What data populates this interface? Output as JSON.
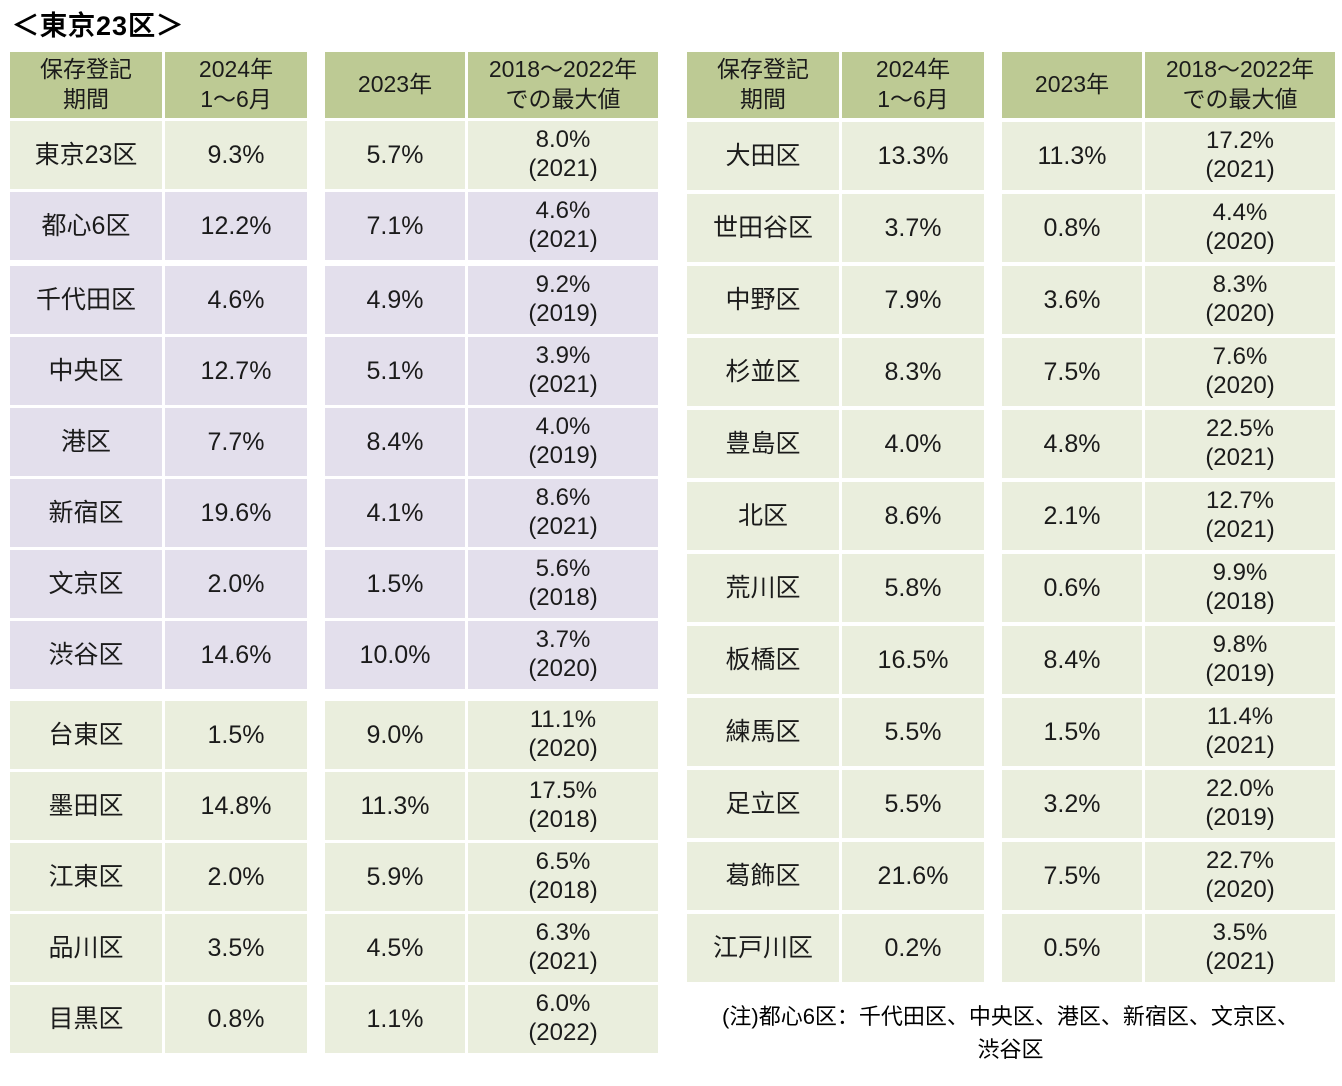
{
  "title": "＜東京23区＞",
  "footnote": {
    "line1": "(注)都心6区：千代田区、中央区、港区、新宿区、文京区、",
    "line2": "渋谷区"
  },
  "colors": {
    "header_bg": "#bdca94",
    "row_green_bg": "#eaeedd",
    "row_purple_bg": "#e3dfec",
    "text": "#1b1b1b",
    "background": "#ffffff"
  },
  "chart_data": [
    {
      "type": "table",
      "position": "left",
      "columns": [
        "保存登記\n期間",
        "2024年\n1～6月",
        "2023年",
        "2018～2022年\nでの最大値"
      ],
      "rows": [
        {
          "ward": "東京23区",
          "v2024": "9.3%",
          "v2023": "5.7%",
          "max_value": "8.0%",
          "max_year": "(2021)",
          "tone": "green",
          "gap_before": 0
        },
        {
          "ward": "都心6区",
          "v2024": "12.2%",
          "v2023": "7.1%",
          "max_value": "4.6%",
          "max_year": "(2021)",
          "tone": "purple",
          "gap_before": 0
        },
        {
          "ward": "千代田区",
          "v2024": "4.6%",
          "v2023": "4.9%",
          "max_value": "9.2%",
          "max_year": "(2019)",
          "tone": "purple",
          "gap_before": 6
        },
        {
          "ward": "中央区",
          "v2024": "12.7%",
          "v2023": "5.1%",
          "max_value": "3.9%",
          "max_year": "(2021)",
          "tone": "purple",
          "gap_before": 0
        },
        {
          "ward": "港区",
          "v2024": "7.7%",
          "v2023": "8.4%",
          "max_value": "4.0%",
          "max_year": "(2019)",
          "tone": "purple",
          "gap_before": 0
        },
        {
          "ward": "新宿区",
          "v2024": "19.6%",
          "v2023": "4.1%",
          "max_value": "8.6%",
          "max_year": "(2021)",
          "tone": "purple",
          "gap_before": 0
        },
        {
          "ward": "文京区",
          "v2024": "2.0%",
          "v2023": "1.5%",
          "max_value": "5.6%",
          "max_year": "(2018)",
          "tone": "purple",
          "gap_before": 0
        },
        {
          "ward": "渋谷区",
          "v2024": "14.6%",
          "v2023": "10.0%",
          "max_value": "3.7%",
          "max_year": "(2020)",
          "tone": "purple",
          "gap_before": 0
        },
        {
          "ward": "台東区",
          "v2024": "1.5%",
          "v2023": "9.0%",
          "max_value": "11.1%",
          "max_year": "(2020)",
          "tone": "green",
          "gap_before": 12
        },
        {
          "ward": "墨田区",
          "v2024": "14.8%",
          "v2023": "11.3%",
          "max_value": "17.5%",
          "max_year": "(2018)",
          "tone": "green",
          "gap_before": 0
        },
        {
          "ward": "江東区",
          "v2024": "2.0%",
          "v2023": "5.9%",
          "max_value": "6.5%",
          "max_year": "(2018)",
          "tone": "green",
          "gap_before": 0
        },
        {
          "ward": "品川区",
          "v2024": "3.5%",
          "v2023": "4.5%",
          "max_value": "6.3%",
          "max_year": "(2021)",
          "tone": "green",
          "gap_before": 0
        },
        {
          "ward": "目黒区",
          "v2024": "0.8%",
          "v2023": "1.1%",
          "max_value": "6.0%",
          "max_year": "(2022)",
          "tone": "green",
          "gap_before": 0
        }
      ]
    },
    {
      "type": "table",
      "position": "right",
      "columns": [
        "保存登記\n期間",
        "2024年\n1～6月",
        "2023年",
        "2018～2022年\nでの最大値"
      ],
      "rows": [
        {
          "ward": "大田区",
          "v2024": "13.3%",
          "v2023": "11.3%",
          "max_value": "17.2%",
          "max_year": "(2021)",
          "tone": "green",
          "gap_before": 0
        },
        {
          "ward": "世田谷区",
          "v2024": "3.7%",
          "v2023": "0.8%",
          "max_value": "4.4%",
          "max_year": "(2020)",
          "tone": "green",
          "gap_before": 0
        },
        {
          "ward": "中野区",
          "v2024": "7.9%",
          "v2023": "3.6%",
          "max_value": "8.3%",
          "max_year": "(2020)",
          "tone": "green",
          "gap_before": 0
        },
        {
          "ward": "杉並区",
          "v2024": "8.3%",
          "v2023": "7.5%",
          "max_value": "7.6%",
          "max_year": "(2020)",
          "tone": "green",
          "gap_before": 0
        },
        {
          "ward": "豊島区",
          "v2024": "4.0%",
          "v2023": "4.8%",
          "max_value": "22.5%",
          "max_year": "(2021)",
          "tone": "green",
          "gap_before": 0
        },
        {
          "ward": "北区",
          "v2024": "8.6%",
          "v2023": "2.1%",
          "max_value": "12.7%",
          "max_year": "(2021)",
          "tone": "green",
          "gap_before": 0
        },
        {
          "ward": "荒川区",
          "v2024": "5.8%",
          "v2023": "0.6%",
          "max_value": "9.9%",
          "max_year": "(2018)",
          "tone": "green",
          "gap_before": 0
        },
        {
          "ward": "板橋区",
          "v2024": "16.5%",
          "v2023": "8.4%",
          "max_value": "9.8%",
          "max_year": "(2019)",
          "tone": "green",
          "gap_before": 0
        },
        {
          "ward": "練馬区",
          "v2024": "5.5%",
          "v2023": "1.5%",
          "max_value": "11.4%",
          "max_year": "(2021)",
          "tone": "green",
          "gap_before": 0
        },
        {
          "ward": "足立区",
          "v2024": "5.5%",
          "v2023": "3.2%",
          "max_value": "22.0%",
          "max_year": "(2019)",
          "tone": "green",
          "gap_before": 0
        },
        {
          "ward": "葛飾区",
          "v2024": "21.6%",
          "v2023": "7.5%",
          "max_value": "22.7%",
          "max_year": "(2020)",
          "tone": "green",
          "gap_before": 0
        },
        {
          "ward": "江戸川区",
          "v2024": "0.2%",
          "v2023": "0.5%",
          "max_value": "3.5%",
          "max_year": "(2021)",
          "tone": "green",
          "gap_before": 0
        }
      ]
    }
  ]
}
